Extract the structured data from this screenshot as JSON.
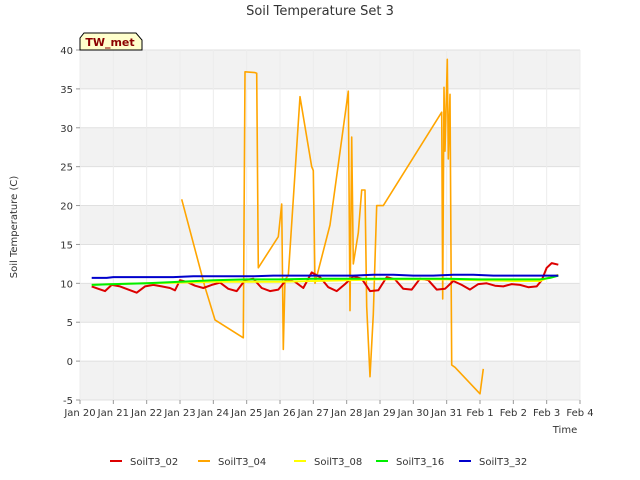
{
  "chart_data": {
    "type": "line",
    "title": "Soil Temperature Set 3",
    "xlabel": "Time",
    "ylabel": "Soil Temperature (C)",
    "badge": "TW_met",
    "ylim": [
      -5,
      40
    ],
    "yticks": [
      -5,
      0,
      5,
      10,
      15,
      20,
      25,
      30,
      35,
      40
    ],
    "xlim": [
      0,
      15
    ],
    "xticks": [
      {
        "x": 0,
        "label": "Jan 20"
      },
      {
        "x": 1,
        "label": "Jan 21"
      },
      {
        "x": 2,
        "label": "Jan 22"
      },
      {
        "x": 3,
        "label": "Jan 23"
      },
      {
        "x": 4,
        "label": "Jan 24"
      },
      {
        "x": 5,
        "label": "Jan 25"
      },
      {
        "x": 6,
        "label": "Jan 26"
      },
      {
        "x": 7,
        "label": "Jan 27"
      },
      {
        "x": 8,
        "label": "Jan 28"
      },
      {
        "x": 9,
        "label": "Jan 29"
      },
      {
        "x": 10,
        "label": "Jan 30"
      },
      {
        "x": 11,
        "label": "Jan 31"
      },
      {
        "x": 12,
        "label": "Feb 1"
      },
      {
        "x": 13,
        "label": "Feb 2"
      },
      {
        "x": 14,
        "label": "Feb 3"
      },
      {
        "x": 15,
        "label": "Feb 4"
      }
    ],
    "x_units": "days since Jan 20",
    "series": [
      {
        "name": "SoilT3_02",
        "color": "#dd0000",
        "x": [
          0.35,
          0.55,
          0.75,
          0.95,
          1.2,
          1.45,
          1.7,
          1.95,
          2.2,
          2.45,
          2.7,
          2.85,
          3.0,
          3.2,
          3.45,
          3.7,
          3.95,
          4.2,
          4.45,
          4.7,
          4.95,
          5.2,
          5.45,
          5.7,
          5.95,
          6.2,
          6.45,
          6.7,
          6.95,
          7.2,
          7.45,
          7.7,
          7.95,
          8.2,
          8.45,
          8.7,
          8.95,
          9.2,
          9.45,
          9.7,
          9.95,
          10.2,
          10.45,
          10.7,
          10.95,
          11.2,
          11.45,
          11.7,
          11.95,
          12.2,
          12.45,
          12.7,
          12.95,
          13.2,
          13.45,
          13.7,
          13.85,
          14.0,
          14.15,
          14.35
        ],
        "values": [
          9.6,
          9.3,
          9.0,
          9.8,
          9.6,
          9.2,
          8.8,
          9.6,
          9.8,
          9.6,
          9.4,
          9.1,
          10.4,
          10.2,
          9.7,
          9.4,
          9.8,
          10.1,
          9.3,
          9.0,
          10.4,
          10.6,
          9.4,
          9.0,
          9.2,
          10.5,
          10.2,
          9.4,
          11.4,
          10.8,
          9.5,
          9.0,
          9.9,
          10.9,
          10.6,
          9.0,
          9.1,
          10.8,
          10.5,
          9.3,
          9.2,
          10.6,
          10.4,
          9.2,
          9.3,
          10.3,
          9.8,
          9.2,
          9.9,
          10.0,
          9.7,
          9.6,
          9.9,
          9.8,
          9.5,
          9.6,
          10.4,
          12.0,
          12.6,
          12.4
        ]
      },
      {
        "name": "SoilT3_04",
        "color": "#ffa500",
        "x": [
          3.05,
          3.75,
          4.05,
          4.9,
          4.95,
          5.25,
          5.3,
          5.35,
          5.95,
          6.05,
          6.1,
          6.15,
          6.25,
          6.6,
          6.95,
          7.0,
          7.05,
          7.5,
          8.05,
          8.1,
          8.15,
          8.2,
          8.35,
          8.45,
          8.55,
          8.6,
          8.7,
          8.8,
          8.9,
          8.95,
          9.0,
          9.05,
          9.1,
          10.85,
          10.88,
          10.92,
          10.95,
          11.02,
          11.05,
          11.1,
          11.15,
          11.25,
          12.0,
          12.1
        ],
        "values": [
          20.8,
          9.5,
          5.3,
          3.0,
          37.2,
          37.1,
          37.0,
          12.0,
          16.0,
          20.2,
          1.5,
          10.5,
          11.0,
          34.0,
          25.0,
          24.5,
          10.0,
          17.5,
          34.7,
          6.5,
          28.8,
          12.5,
          16.5,
          22.0,
          22.0,
          7.0,
          -2.0,
          6.0,
          20.0,
          20.0,
          20.0,
          20.0,
          20.0,
          32.0,
          8.0,
          35.2,
          27.0,
          38.8,
          26.0,
          34.3,
          -0.5,
          -0.8,
          -4.2,
          -1.0
        ]
      },
      {
        "name": "SoilT3_08",
        "color": "#ffff00",
        "x": [
          0.35,
          1.0,
          2.0,
          3.0,
          4.0,
          5.0,
          6.0,
          7.0,
          8.0,
          9.0,
          10.0,
          11.0,
          12.0,
          13.0,
          13.8,
          14.1,
          14.35
        ],
        "values": [
          9.8,
          9.9,
          10.0,
          10.1,
          10.2,
          10.2,
          10.2,
          10.3,
          10.4,
          10.5,
          10.5,
          10.5,
          10.4,
          10.3,
          10.3,
          10.8,
          11.1
        ]
      },
      {
        "name": "SoilT3_16",
        "color": "#00ee00",
        "x": [
          0.35,
          1.0,
          2.0,
          3.0,
          4.0,
          5.0,
          6.0,
          7.0,
          8.0,
          9.0,
          10.0,
          11.0,
          12.0,
          13.0,
          13.8,
          14.1,
          14.35
        ],
        "values": [
          9.8,
          9.9,
          10.0,
          10.2,
          10.4,
          10.5,
          10.5,
          10.6,
          10.6,
          10.6,
          10.6,
          10.6,
          10.5,
          10.5,
          10.5,
          10.7,
          11.0
        ]
      },
      {
        "name": "SoilT3_32",
        "color": "#0000cc",
        "x": [
          0.35,
          0.8,
          1.0,
          1.6,
          2.2,
          2.8,
          3.4,
          4.0,
          4.6,
          5.2,
          5.8,
          6.4,
          7.0,
          7.6,
          8.2,
          8.8,
          9.4,
          10.0,
          10.6,
          11.2,
          11.8,
          12.4,
          13.0,
          13.6,
          14.35
        ],
        "values": [
          10.7,
          10.7,
          10.8,
          10.8,
          10.8,
          10.8,
          10.9,
          10.9,
          10.9,
          10.9,
          11.0,
          11.0,
          11.0,
          11.0,
          11.0,
          11.1,
          11.1,
          11.0,
          11.0,
          11.1,
          11.1,
          11.0,
          11.0,
          11.0,
          11.0
        ]
      }
    ],
    "legend_position": "bottom-center"
  }
}
